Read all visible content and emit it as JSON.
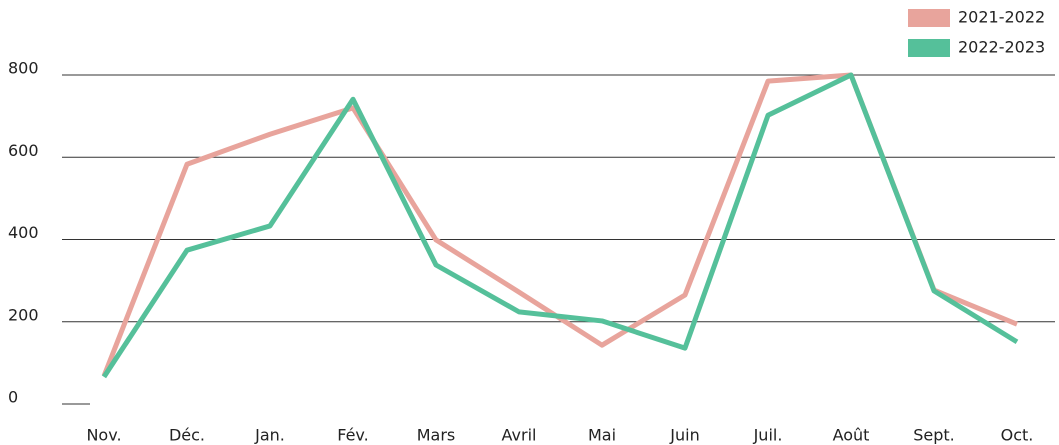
{
  "chart_data": {
    "type": "line",
    "categories": [
      "Nov.",
      "Déc.",
      "Jan.",
      "Fév.",
      "Mars",
      "Avril",
      "Mai",
      "Juin",
      "Juil.",
      "Août",
      "Sept.",
      "Oct."
    ],
    "series": [
      {
        "name": "2021-2022",
        "color": "#e8a49c",
        "values": [
          68,
          583,
          656,
          720,
          399,
          272,
          143,
          265,
          785,
          800,
          277,
          194
        ]
      },
      {
        "name": "2022-2023",
        "color": "#55c09a",
        "values": [
          66,
          374,
          433,
          741,
          338,
          224,
          202,
          136,
          702,
          800,
          275,
          151
        ]
      }
    ],
    "ylim": [
      0,
      800
    ],
    "yticks": [
      0,
      200,
      400,
      600,
      800
    ],
    "grid": true,
    "legend": "top-right"
  }
}
